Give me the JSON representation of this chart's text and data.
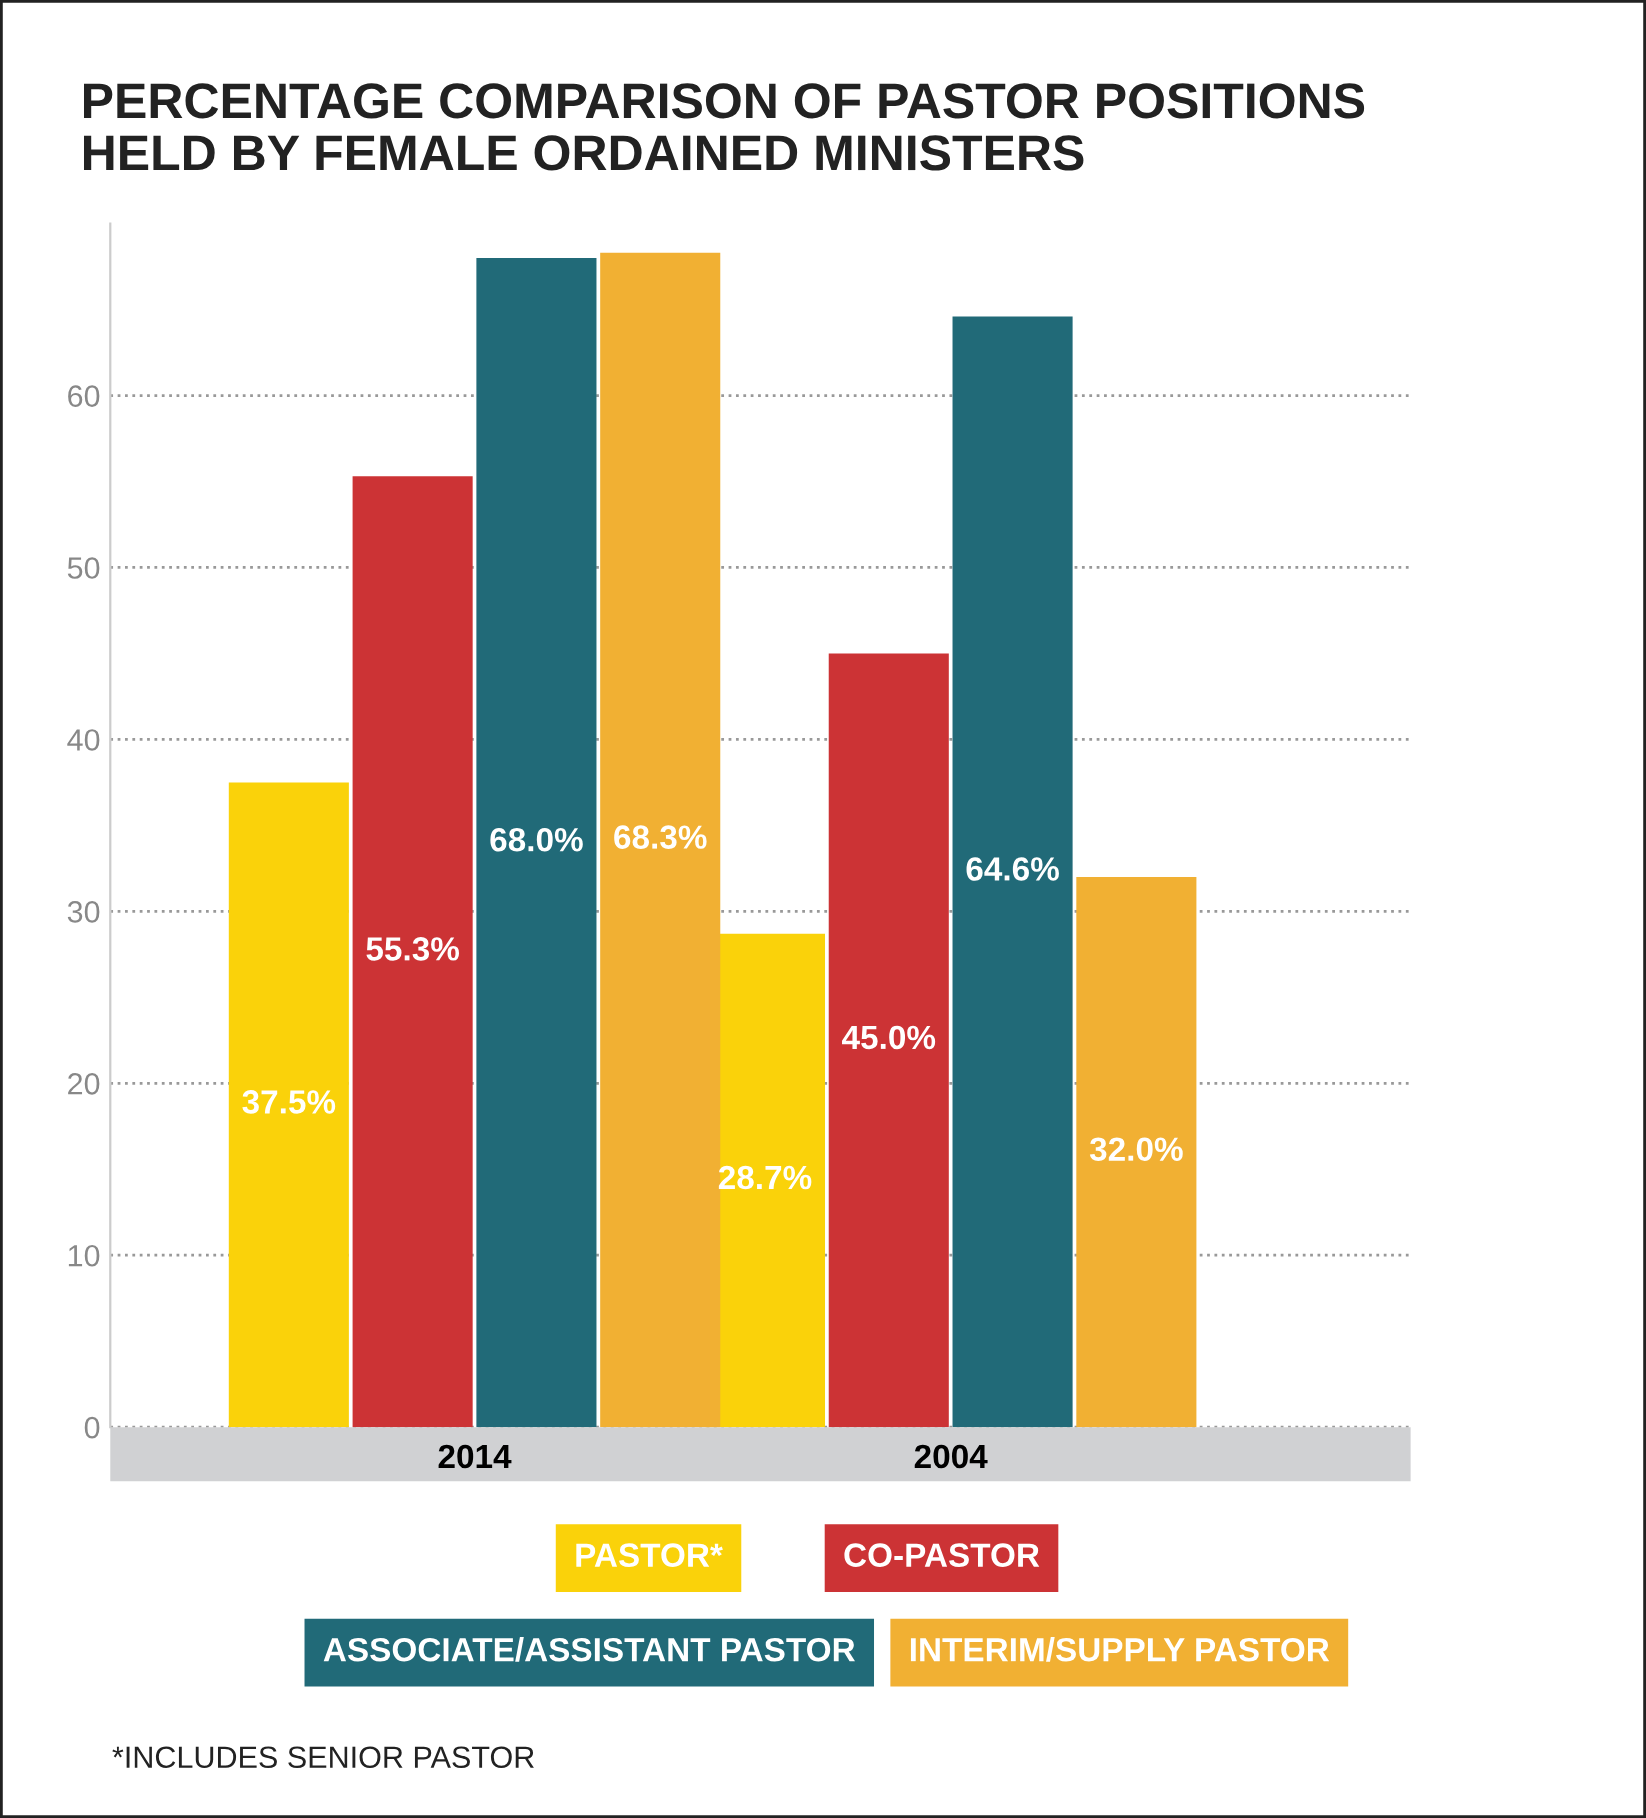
{
  "chart_data": {
    "type": "bar",
    "title": "PERCENTAGE COMPARISON OF PASTOR POSITIONS\nHELD BY FEMALE ORDAINED MINISTERS",
    "categories": [
      "2014",
      "2004"
    ],
    "series": [
      {
        "name": "PASTOR*",
        "color": "#fad20a",
        "values": [
          37.5,
          28.7
        ],
        "value_labels": [
          "37.5%",
          "28.7%"
        ]
      },
      {
        "name": "CO-PASTOR",
        "color": "#cc3335",
        "values": [
          55.3,
          45.0
        ],
        "value_labels": [
          "55.3%",
          "45.0%"
        ]
      },
      {
        "name": "ASSOCIATE/ASSISTANT PASTOR",
        "color": "#216a78",
        "values": [
          68.0,
          64.6
        ],
        "value_labels": [
          "68.0%",
          "64.6%"
        ]
      },
      {
        "name": "INTERIM/SUPPLY PASTOR",
        "color": "#f1b033",
        "values": [
          68.3,
          32.0
        ],
        "value_labels": [
          "68.3%",
          "32.0%"
        ]
      }
    ],
    "ylim": [
      0,
      70
    ],
    "yticks": [
      0,
      10,
      20,
      30,
      40,
      50,
      60
    ],
    "grid": "y",
    "legend": "bottom",
    "annotations": [
      "*INCLUDES SENIOR PASTOR"
    ]
  }
}
